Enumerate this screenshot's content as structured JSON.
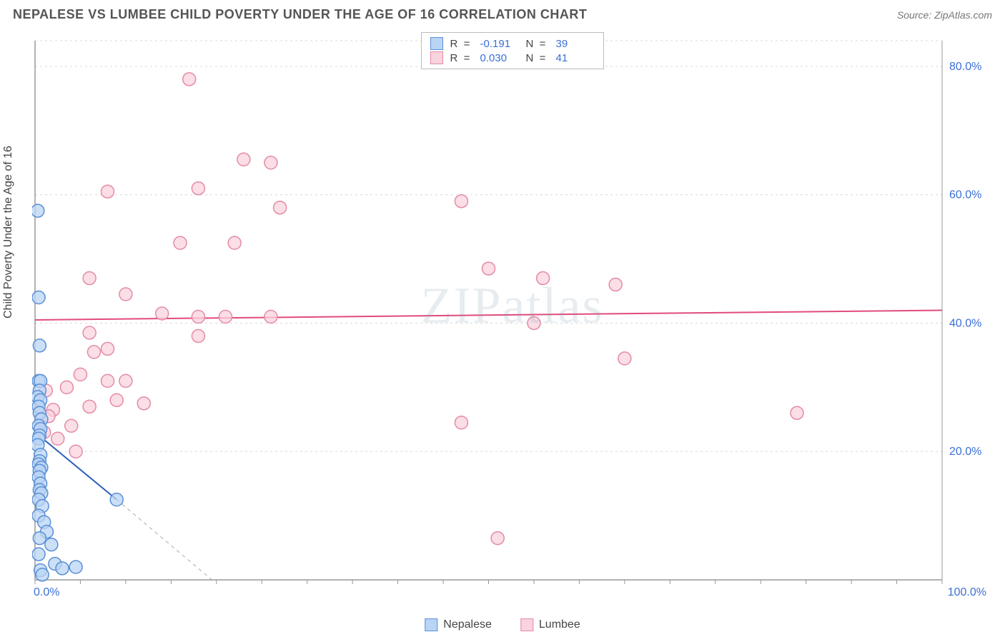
{
  "title": "NEPALESE VS LUMBEE CHILD POVERTY UNDER THE AGE OF 16 CORRELATION CHART",
  "source": "Source: ZipAtlas.com",
  "y_axis_label": "Child Poverty Under the Age of 16",
  "watermark": "ZIPatlas",
  "chart": {
    "type": "scatter",
    "xlim": [
      0,
      100
    ],
    "ylim": [
      0,
      84
    ],
    "x_ticks": [
      0,
      100
    ],
    "x_tick_labels": [
      "0.0%",
      "100.0%"
    ],
    "y_ticks": [
      20,
      40,
      60,
      80
    ],
    "y_tick_labels": [
      "20.0%",
      "40.0%",
      "60.0%",
      "80.0%"
    ],
    "grid_color": "#d8d8d8",
    "axis_color": "#999999",
    "background_color": "#ffffff",
    "marker_radius": 9,
    "marker_stroke_width": 1.5,
    "line_width": 2,
    "series": [
      {
        "name": "Nepalese",
        "fill": "#b9d4f4",
        "stroke": "#5a8fd6",
        "line_color": "#2e5fb8",
        "R": "-0.191",
        "N": "39",
        "trend": {
          "x1": 0,
          "y1": 23,
          "x2": 9,
          "y2": 12.5
        },
        "trend_dash": {
          "x1": 9,
          "y1": 12.5,
          "x2": 19.5,
          "y2": 0
        },
        "points": [
          [
            0.3,
            57.5
          ],
          [
            0.4,
            44
          ],
          [
            0.5,
            36.5
          ],
          [
            0.4,
            31
          ],
          [
            0.6,
            31
          ],
          [
            0.5,
            29.5
          ],
          [
            0.3,
            28.5
          ],
          [
            0.6,
            28
          ],
          [
            0.4,
            27
          ],
          [
            0.5,
            26
          ],
          [
            0.7,
            25
          ],
          [
            0.4,
            24
          ],
          [
            0.6,
            23.5
          ],
          [
            0.5,
            22.5
          ],
          [
            0.4,
            22
          ],
          [
            0.3,
            21
          ],
          [
            0.6,
            19.5
          ],
          [
            0.5,
            18.5
          ],
          [
            0.4,
            18
          ],
          [
            0.7,
            17.5
          ],
          [
            0.5,
            17
          ],
          [
            0.4,
            16
          ],
          [
            0.6,
            15
          ],
          [
            0.5,
            14
          ],
          [
            0.7,
            13.5
          ],
          [
            0.4,
            12.5
          ],
          [
            0.8,
            11.5
          ],
          [
            0.4,
            10
          ],
          [
            1.0,
            9
          ],
          [
            1.3,
            7.5
          ],
          [
            0.5,
            6.5
          ],
          [
            1.8,
            5.5
          ],
          [
            0.4,
            4
          ],
          [
            2.2,
            2.5
          ],
          [
            4.5,
            2
          ],
          [
            0.6,
            1.5
          ],
          [
            3.0,
            1.8
          ],
          [
            0.8,
            0.8
          ],
          [
            9,
            12.5
          ]
        ]
      },
      {
        "name": "Lumbee",
        "fill": "#f9d3dd",
        "stroke": "#e48ba4",
        "line_color": "#e14b7b",
        "R": "0.030",
        "N": "41",
        "trend": {
          "x1": 0,
          "y1": 40.5,
          "x2": 100,
          "y2": 42
        },
        "points": [
          [
            17,
            78
          ],
          [
            23,
            65.5
          ],
          [
            26,
            65
          ],
          [
            18,
            61
          ],
          [
            8,
            60.5
          ],
          [
            47,
            59
          ],
          [
            27,
            58
          ],
          [
            16,
            52.5
          ],
          [
            22,
            52.5
          ],
          [
            50,
            48.5
          ],
          [
            6,
            47
          ],
          [
            56,
            47
          ],
          [
            64,
            46
          ],
          [
            10,
            44.5
          ],
          [
            14,
            41.5
          ],
          [
            18,
            41
          ],
          [
            21,
            41
          ],
          [
            26,
            41
          ],
          [
            55,
            40
          ],
          [
            6,
            38.5
          ],
          [
            18,
            38
          ],
          [
            8,
            36
          ],
          [
            6.5,
            35.5
          ],
          [
            65,
            34.5
          ],
          [
            5,
            32
          ],
          [
            8,
            31
          ],
          [
            10,
            31
          ],
          [
            3.5,
            30
          ],
          [
            1.2,
            29.5
          ],
          [
            9,
            28
          ],
          [
            12,
            27.5
          ],
          [
            6,
            27
          ],
          [
            2,
            26.5
          ],
          [
            1.5,
            25.5
          ],
          [
            84,
            26
          ],
          [
            4,
            24
          ],
          [
            47,
            24.5
          ],
          [
            1,
            23
          ],
          [
            2.5,
            22
          ],
          [
            4.5,
            20
          ],
          [
            51,
            6.5
          ]
        ]
      }
    ]
  },
  "legend_bottom": [
    {
      "label": "Nepalese",
      "fill": "#b9d4f4",
      "stroke": "#5a8fd6"
    },
    {
      "label": "Lumbee",
      "fill": "#f9d3dd",
      "stroke": "#e48ba4"
    }
  ]
}
